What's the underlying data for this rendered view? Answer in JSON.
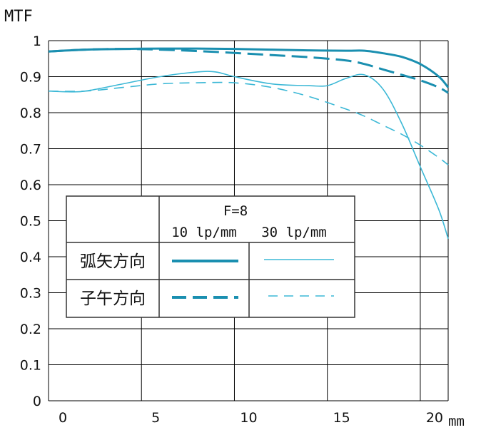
{
  "chart_data": {
    "type": "line",
    "ylabel": "MTF",
    "xunit": "mm",
    "xlim": [
      0,
      21.5
    ],
    "ylim": [
      0,
      1
    ],
    "x_ticks": [
      "0",
      "5",
      "10",
      "15",
      "20"
    ],
    "y_ticks": [
      "0",
      "0.1",
      "0.2",
      "0.3",
      "0.4",
      "0.5",
      "0.6",
      "0.7",
      "0.8",
      "0.9",
      "1"
    ],
    "grid": true,
    "colors": {
      "dark": "#1a8fb0",
      "light": "#3cb8d6",
      "grid": "#000000"
    },
    "legend": {
      "header": "F=8",
      "col1": "10 lp/mm",
      "col2": "30 lp/mm",
      "row1": "弧矢方向",
      "row2": "子午方向"
    },
    "series": [
      {
        "name": "弧矢方向 10 lp/mm",
        "color": "#1a8fb0",
        "dash": "solid",
        "width": 3,
        "x": [
          0,
          2,
          4,
          6,
          8,
          10,
          12,
          14,
          16,
          17,
          18,
          19,
          20,
          21,
          21.5
        ],
        "y": [
          0.97,
          0.975,
          0.977,
          0.978,
          0.978,
          0.977,
          0.975,
          0.973,
          0.972,
          0.972,
          0.965,
          0.955,
          0.935,
          0.9,
          0.87
        ]
      },
      {
        "name": "子午方向 10 lp/mm",
        "color": "#1a8fb0",
        "dash": "dashed",
        "width": 3,
        "x": [
          0,
          2,
          4,
          6,
          8,
          10,
          12,
          14,
          16,
          17,
          18,
          19,
          20,
          21,
          21.5
        ],
        "y": [
          0.97,
          0.975,
          0.977,
          0.975,
          0.971,
          0.966,
          0.96,
          0.954,
          0.945,
          0.935,
          0.92,
          0.905,
          0.89,
          0.87,
          0.855
        ]
      },
      {
        "name": "弧矢方向 30 lp/mm",
        "color": "#3cb8d6",
        "dash": "solid",
        "width": 1.6,
        "x": [
          0,
          1,
          2,
          4,
          6,
          8,
          9,
          10,
          12,
          14,
          15,
          16,
          17,
          18,
          19,
          20,
          21,
          21.5
        ],
        "y": [
          0.86,
          0.858,
          0.86,
          0.88,
          0.9,
          0.913,
          0.913,
          0.9,
          0.88,
          0.875,
          0.875,
          0.895,
          0.905,
          0.865,
          0.77,
          0.65,
          0.53,
          0.45
        ]
      },
      {
        "name": "子午方向 30 lp/mm",
        "color": "#3cb8d6",
        "dash": "dashed",
        "width": 1.6,
        "x": [
          0,
          2,
          4,
          6,
          8,
          10,
          12,
          14,
          16,
          17,
          18,
          19,
          20,
          21,
          21.5
        ],
        "y": [
          0.86,
          0.86,
          0.87,
          0.88,
          0.883,
          0.883,
          0.87,
          0.845,
          0.81,
          0.79,
          0.765,
          0.74,
          0.71,
          0.675,
          0.655
        ]
      }
    ]
  }
}
